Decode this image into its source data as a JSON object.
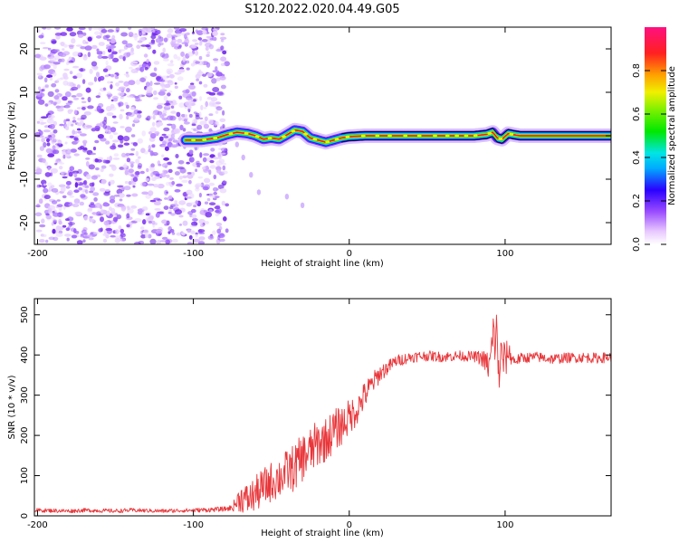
{
  "figure_title": "S120.2022.020.04.49.G05",
  "colors": {
    "snr_line": "#e8363a",
    "axis": "#000000",
    "ridge_core": "#e0222d"
  },
  "chart_data": [
    {
      "type": "heatmap",
      "name": "spectrogram",
      "title": "S120.2022.020.04.49.G05",
      "xlabel": "Height of straight line (km)",
      "ylabel": "Frequency (Hz)",
      "xlim": [
        -202,
        168
      ],
      "ylim": [
        -25,
        25
      ],
      "xticks": [
        -200,
        -100,
        0,
        100
      ],
      "yticks": [
        -20,
        -10,
        0,
        10,
        20
      ],
      "noise_region_x": [
        -200,
        -83
      ],
      "signal_onset_x": -105,
      "ridge": {
        "x": [
          -105,
          -95,
          -85,
          -78,
          -72,
          -65,
          -60,
          -55,
          -50,
          -45,
          -40,
          -35,
          -30,
          -25,
          -20,
          -15,
          -10,
          -5,
          0,
          10,
          50,
          80,
          88,
          92,
          95,
          98,
          102,
          106,
          110,
          168
        ],
        "freq": [
          -1.0,
          -1.0,
          -0.5,
          0.3,
          0.8,
          0.5,
          0.0,
          -0.8,
          -0.5,
          -0.8,
          0.2,
          1.3,
          1.0,
          -0.5,
          -1.0,
          -1.5,
          -1.0,
          -0.5,
          -0.2,
          0.0,
          0.0,
          0.0,
          0.3,
          0.8,
          -0.5,
          -0.8,
          0.5,
          0.2,
          0.0,
          0.0
        ]
      },
      "colorbar": {
        "label": "Normalized spectral amplitude",
        "range": [
          0.0,
          1.0
        ],
        "ticks": [
          0.0,
          0.2,
          0.4,
          0.6,
          0.8
        ],
        "tick_labels": [
          "0.0",
          "0.2",
          "0.4",
          "0.6",
          "0.8"
        ]
      }
    },
    {
      "type": "line",
      "name": "snr",
      "xlabel": "Height of straight line (km)",
      "ylabel": "SNR (10 * v/v)",
      "xlim": [
        -202,
        168
      ],
      "ylim": [
        0,
        540
      ],
      "xticks": [
        -200,
        -100,
        0,
        100
      ],
      "yticks": [
        0,
        100,
        200,
        300,
        400,
        500
      ],
      "series": [
        {
          "name": "SNR",
          "x": [
            -202,
            -190,
            -180,
            -170,
            -160,
            -150,
            -140,
            -130,
            -120,
            -110,
            -100,
            -90,
            -80,
            -75,
            -72,
            -70,
            -65,
            -60,
            -55,
            -50,
            -45,
            -40,
            -35,
            -30,
            -25,
            -20,
            -15,
            -10,
            -5,
            0,
            5,
            10,
            15,
            20,
            25,
            30,
            40,
            50,
            60,
            70,
            80,
            85,
            90,
            92,
            94,
            96,
            98,
            100,
            102,
            104,
            106,
            110,
            120,
            130,
            140,
            150,
            160,
            168
          ],
          "y": [
            14,
            13,
            12,
            14,
            13,
            12,
            14,
            13,
            12,
            13,
            14,
            15,
            17,
            20,
            35,
            45,
            40,
            55,
            70,
            85,
            95,
            110,
            120,
            145,
            160,
            180,
            190,
            210,
            225,
            245,
            265,
            300,
            330,
            355,
            370,
            385,
            395,
            398,
            395,
            398,
            396,
            392,
            370,
            430,
            460,
            360,
            400,
            380,
            410,
            395,
            385,
            392,
            395,
            390,
            393,
            394,
            392,
            395
          ],
          "amp": [
            5,
            5,
            5,
            5,
            5,
            5,
            5,
            5,
            5,
            5,
            5,
            6,
            6,
            8,
            25,
            35,
            40,
            45,
            50,
            50,
            55,
            55,
            60,
            60,
            60,
            60,
            55,
            55,
            50,
            45,
            40,
            35,
            28,
            22,
            18,
            15,
            14,
            13,
            13,
            13,
            13,
            20,
            40,
            80,
            90,
            70,
            60,
            50,
            30,
            20,
            15,
            13,
            13,
            13,
            13,
            13,
            13,
            13
          ]
        }
      ]
    }
  ]
}
